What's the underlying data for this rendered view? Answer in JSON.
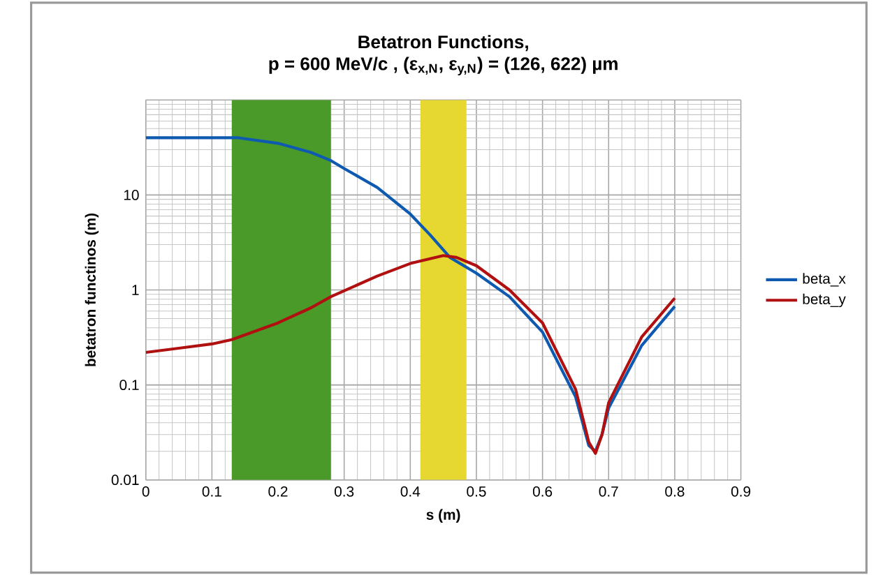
{
  "chart_data": {
    "type": "line",
    "title": "Betatron Functions,",
    "subtitle": "p = 600 MeV/c ,  (ε$_{x,N}$, ε$_{y,N}$) = (126, 622) µm",
    "xlabel": "s (m)",
    "ylabel": "betatron functinos (m)",
    "log": "y",
    "grid": true,
    "legend": "right",
    "line_style": "solid",
    "marker": "none",
    "xlim": [
      0,
      0.9
    ],
    "ylim": [
      0.01,
      100
    ],
    "xticks": [
      0,
      0.1,
      0.2,
      0.3,
      0.4,
      0.5,
      0.6,
      0.7,
      0.8,
      0.9
    ],
    "yticks": [
      0.01,
      0.1,
      1,
      10,
      {
        "value": 100,
        "label": null
      }
    ],
    "bands": [
      {
        "axis": "x",
        "from": 0.13,
        "to": 0.28,
        "color": "#4a9a2a"
      },
      {
        "axis": "x",
        "from": 0.415,
        "to": 0.485,
        "color": "#e6d830"
      }
    ],
    "series": [
      {
        "name": "beta_x",
        "color": "#0d5ab0",
        "x": [
          0,
          0.1,
          0.14,
          0.2,
          0.25,
          0.28,
          0.3,
          0.35,
          0.4,
          0.43,
          0.46,
          0.5,
          0.55,
          0.6,
          0.65,
          0.67,
          0.68,
          0.69,
          0.7,
          0.75,
          0.8
        ],
        "values": [
          40,
          40,
          40,
          35,
          28,
          23,
          19,
          12,
          6.3,
          3.8,
          2.2,
          1.5,
          0.85,
          0.36,
          0.075,
          0.023,
          0.02,
          0.03,
          0.057,
          0.26,
          0.67
        ]
      },
      {
        "name": "beta_y",
        "color": "#b01010",
        "x": [
          0,
          0.1,
          0.13,
          0.2,
          0.25,
          0.28,
          0.35,
          0.4,
          0.45,
          0.47,
          0.5,
          0.55,
          0.6,
          0.65,
          0.67,
          0.68,
          0.69,
          0.7,
          0.75,
          0.8
        ],
        "values": [
          0.22,
          0.27,
          0.3,
          0.45,
          0.65,
          0.85,
          1.4,
          1.9,
          2.3,
          2.2,
          1.8,
          1.0,
          0.45,
          0.09,
          0.025,
          0.019,
          0.03,
          0.065,
          0.32,
          0.82
        ]
      }
    ]
  }
}
